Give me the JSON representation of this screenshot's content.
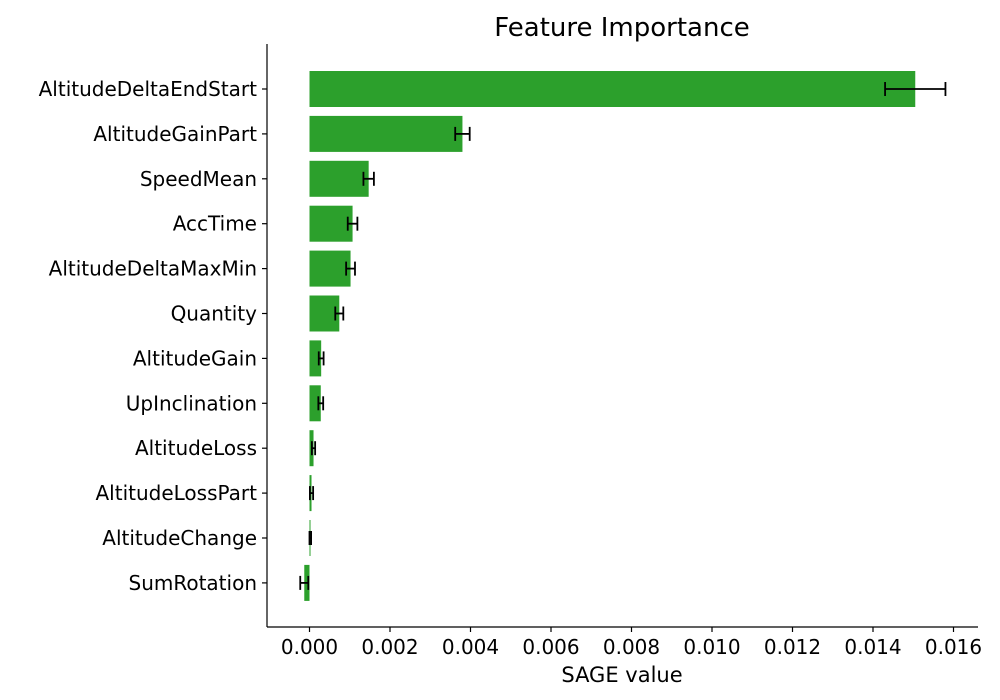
{
  "chart_data": {
    "type": "bar",
    "orientation": "horizontal",
    "title": "Feature Importance",
    "xlabel": "SAGE value",
    "ylabel": "",
    "xlim": [
      -0.0011,
      0.0166
    ],
    "xticks": [
      0.0,
      0.002,
      0.004,
      0.006,
      0.008,
      0.01,
      0.012,
      0.014,
      0.016
    ],
    "xtick_labels": [
      "0.000",
      "0.002",
      "0.004",
      "0.006",
      "0.008",
      "0.010",
      "0.012",
      "0.014",
      "0.016"
    ],
    "bar_color": "#2ca02c",
    "error_color": "#000000",
    "categories": [
      "AltitudeDeltaEndStart",
      "AltitudeGainPart",
      "SpeedMean",
      "AccTime",
      "AltitudeDeltaMaxMin",
      "Quantity",
      "AltitudeGain",
      "UpInclination",
      "AltitudeLoss",
      "AltitudeLossPart",
      "AltitudeChange",
      "SumRotation"
    ],
    "values": [
      0.01505,
      0.0038,
      0.00147,
      0.00107,
      0.00102,
      0.00074,
      0.00029,
      0.00028,
      0.0001,
      5e-05,
      2e-05,
      -0.00013
    ],
    "errors": [
      0.00075,
      0.00018,
      0.00013,
      0.00012,
      0.00011,
      0.0001,
      6e-05,
      6e-05,
      4e-05,
      4e-05,
      2e-05,
      0.0001
    ],
    "grid": false,
    "spines": [
      "left",
      "bottom"
    ]
  }
}
